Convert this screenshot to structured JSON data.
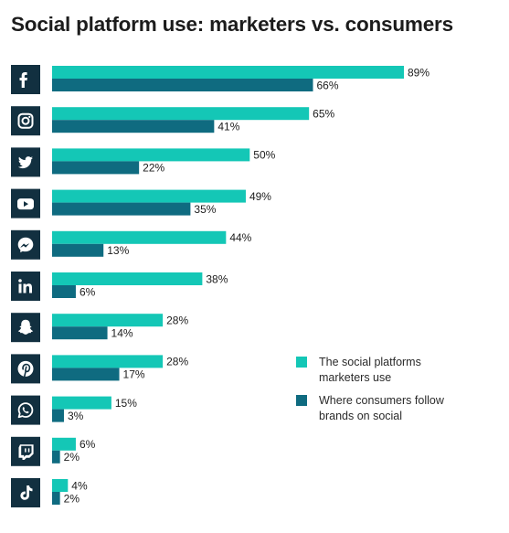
{
  "title": "Social platform use: marketers vs. consumers",
  "colors": {
    "marketers": "#14c7b6",
    "consumers": "#0f6b80",
    "icon_bg": "#123040",
    "icon_fg": "#ffffff"
  },
  "chart_data": {
    "type": "bar",
    "orientation": "horizontal",
    "categories": [
      "Facebook",
      "Instagram",
      "Twitter",
      "YouTube",
      "Messenger",
      "LinkedIn",
      "Snapchat",
      "Pinterest",
      "WhatsApp",
      "Twitch",
      "TikTok"
    ],
    "category_icons": [
      "facebook-icon",
      "instagram-icon",
      "twitter-icon",
      "youtube-icon",
      "messenger-icon",
      "linkedin-icon",
      "snapchat-icon",
      "pinterest-icon",
      "whatsapp-icon",
      "twitch-icon",
      "tiktok-icon"
    ],
    "series": [
      {
        "name": "The social platforms marketers use",
        "values": [
          89,
          65,
          50,
          49,
          44,
          38,
          28,
          28,
          15,
          6,
          4
        ],
        "labels": [
          "89%",
          "65%",
          "50%",
          "49%",
          "44%",
          "38%",
          "28%",
          "28%",
          "15%",
          "6%",
          "4%"
        ]
      },
      {
        "name": "Where consumers follow brands on social",
        "values": [
          66,
          41,
          22,
          35,
          13,
          6,
          14,
          17,
          3,
          2,
          2
        ],
        "labels": [
          "66%",
          "41%",
          "22%",
          "35%",
          "13%",
          "6%",
          "14%",
          "17%",
          "3%",
          "2%",
          "2%"
        ]
      }
    ],
    "xlim": [
      0,
      89
    ],
    "grid": false,
    "legend_position": "right"
  },
  "legend": {
    "marketers": [
      "The social platforms",
      "marketers use"
    ],
    "consumers": [
      "Where consumers follow",
      "brands on social"
    ]
  }
}
